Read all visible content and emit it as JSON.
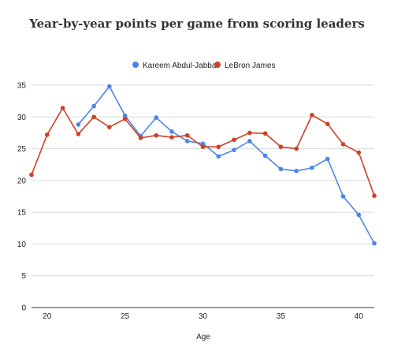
{
  "chart_data": {
    "type": "line",
    "title": "Year-by-year points per game from scoring leaders",
    "xlabel": "Age",
    "ylabel": "",
    "xlim": [
      19,
      41
    ],
    "ylim": [
      0,
      35
    ],
    "x_ticks": [
      20,
      25,
      30,
      35,
      40
    ],
    "y_ticks": [
      0,
      5,
      10,
      15,
      20,
      25,
      30,
      35
    ],
    "grid": true,
    "legend_position": "top-center",
    "series": [
      {
        "name": "Kareem Abdul-Jabbar",
        "color": "#4a86e8",
        "points": [
          [
            22,
            28.8
          ],
          [
            23,
            31.7
          ],
          [
            24,
            34.8
          ],
          [
            25,
            30.2
          ],
          [
            26,
            27.0
          ],
          [
            27,
            29.9
          ],
          [
            28,
            27.7
          ],
          [
            29,
            26.2
          ],
          [
            30,
            25.8
          ],
          [
            31,
            23.8
          ],
          [
            32,
            24.8
          ],
          [
            33,
            26.2
          ],
          [
            34,
            23.9
          ],
          [
            35,
            21.8
          ],
          [
            36,
            21.5
          ],
          [
            37,
            22.0
          ],
          [
            38,
            23.4
          ],
          [
            39,
            17.5
          ],
          [
            40,
            14.6
          ],
          [
            41,
            10.1
          ]
        ]
      },
      {
        "name": "LeBron James",
        "color": "#cc4125",
        "points": [
          [
            19,
            20.9
          ],
          [
            20,
            27.2
          ],
          [
            21,
            31.4
          ],
          [
            22,
            27.3
          ],
          [
            23,
            30.0
          ],
          [
            24,
            28.4
          ],
          [
            25,
            29.7
          ],
          [
            26,
            26.7
          ],
          [
            27,
            27.1
          ],
          [
            28,
            26.8
          ],
          [
            29,
            27.1
          ],
          [
            30,
            25.3
          ],
          [
            31,
            25.3
          ],
          [
            32,
            26.4
          ],
          [
            33,
            27.5
          ],
          [
            34,
            27.4
          ],
          [
            35,
            25.3
          ],
          [
            36,
            25.0
          ],
          [
            37,
            30.3
          ],
          [
            38,
            28.9
          ],
          [
            39,
            25.7
          ],
          [
            40,
            24.4
          ],
          [
            41,
            17.6
          ]
        ]
      }
    ]
  }
}
